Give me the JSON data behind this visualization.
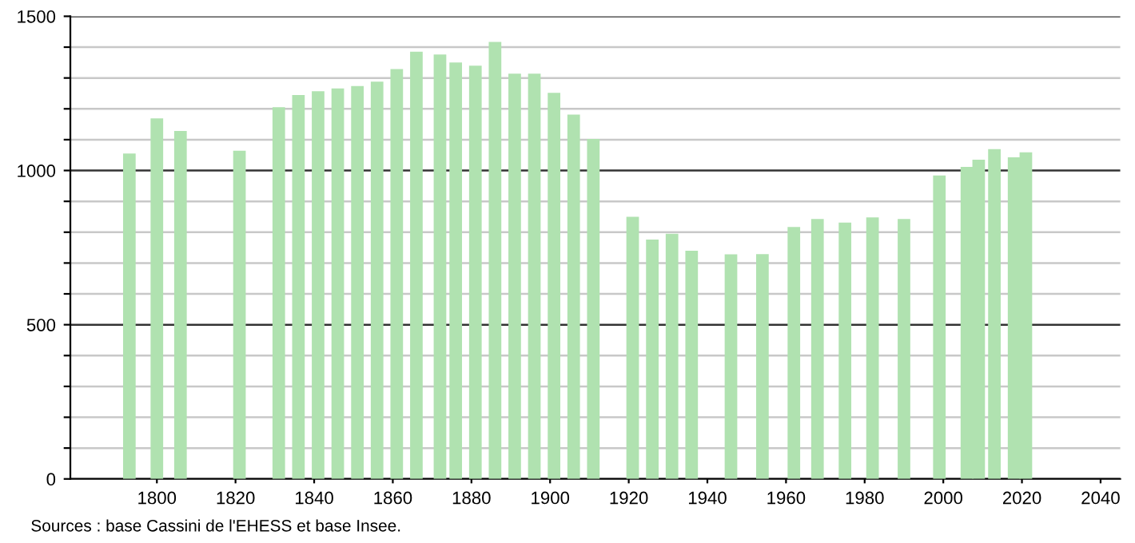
{
  "chart_data": {
    "type": "bar",
    "x": [
      1793,
      1800,
      1806,
      1821,
      1831,
      1836,
      1841,
      1846,
      1851,
      1856,
      1861,
      1866,
      1872,
      1876,
      1881,
      1886,
      1891,
      1896,
      1901,
      1906,
      1911,
      1921,
      1926,
      1931,
      1936,
      1946,
      1954,
      1962,
      1968,
      1975,
      1982,
      1990,
      1999,
      2006,
      2009,
      2013,
      2018,
      2021
    ],
    "values": [
      1055,
      1169,
      1128,
      1064,
      1205,
      1245,
      1257,
      1266,
      1274,
      1288,
      1329,
      1385,
      1376,
      1350,
      1340,
      1417,
      1314,
      1314,
      1252,
      1181,
      1102,
      850,
      776,
      795,
      740,
      728,
      729,
      817,
      843,
      831,
      848,
      843,
      984,
      1012,
      1035,
      1069,
      1043,
      1059
    ],
    "color": "#b0e2b0",
    "xlim": [
      1778,
      2045
    ],
    "xticks": [
      1800,
      1820,
      1840,
      1860,
      1880,
      1900,
      1920,
      1940,
      1960,
      1980,
      2000,
      2020,
      2040
    ],
    "ylim": [
      0,
      1500
    ],
    "yticks": [
      0,
      {
        "value": 100,
        "label": null
      },
      {
        "value": 200,
        "label": null
      },
      {
        "value": 300,
        "label": null
      },
      {
        "value": 400,
        "label": null
      },
      500,
      {
        "value": 600,
        "label": null
      },
      {
        "value": 700,
        "label": null
      },
      {
        "value": 800,
        "label": null
      },
      {
        "value": 900,
        "label": null
      },
      1000,
      {
        "value": 1100,
        "label": null
      },
      {
        "value": 1200,
        "label": null
      },
      {
        "value": 1300,
        "label": null
      },
      {
        "value": 1400,
        "label": null
      },
      1500
    ],
    "grid": "y",
    "annotations": [
      "Sources : base Cassini de l'EHESS et base Insee."
    ]
  }
}
